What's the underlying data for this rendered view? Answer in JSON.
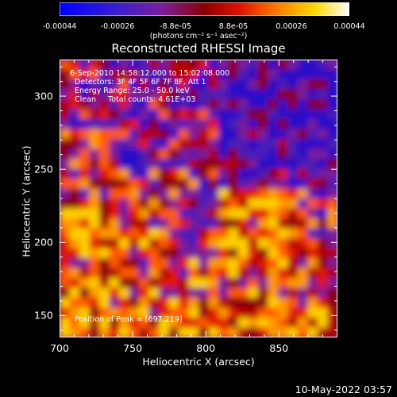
{
  "colorbar": {
    "ticks": [
      "-0.00044",
      "-0.00026",
      "-8.8e-05",
      "8.8e-05",
      "0.00026",
      "0.00044"
    ],
    "units": "(photons cm⁻² s⁻¹ asec⁻²)",
    "range": [
      -0.00044,
      0.00044
    ]
  },
  "chart_data": {
    "type": "heatmap",
    "title": "Reconstructed RHESSI Image",
    "xlabel": "Heliocentric X (arcsec)",
    "ylabel": "Heliocentric Y (arcsec)",
    "xlim": [
      700,
      890
    ],
    "ylim": [
      135,
      325
    ],
    "xticks": [
      700,
      750,
      800,
      850
    ],
    "yticks": [
      150,
      200,
      250,
      300
    ],
    "annotations": [
      "6-Sep-2010 14:58:12.000 to 15:02:08.000",
      "Detectors: 3F 4F 5F 6F 7F 8F, Att 1",
      "Energy Range: 25.0 - 50.0 keV",
      "Clean     Total counts: 4.61E+03"
    ],
    "peak_label": "Position of Peak = [697,219]",
    "colormap": "rainbow-like: blue-purple-red-orange-yellow-white"
  },
  "timestamp": "10-May-2022 03:57"
}
